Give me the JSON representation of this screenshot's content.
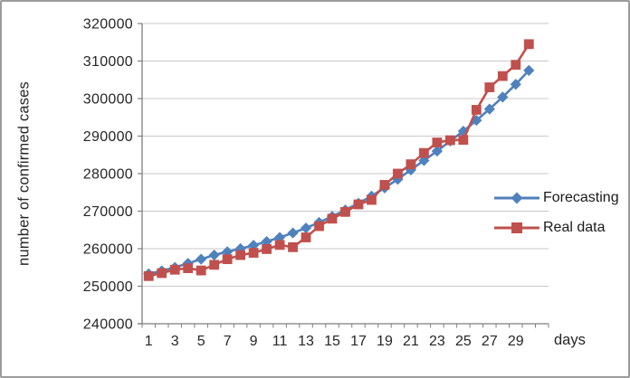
{
  "chart_data": {
    "type": "line",
    "title": "",
    "xlabel": "days",
    "ylabel": "number of confirmed cases",
    "x": [
      1,
      2,
      3,
      4,
      5,
      6,
      7,
      8,
      9,
      10,
      11,
      12,
      13,
      14,
      15,
      16,
      17,
      18,
      19,
      20,
      21,
      22,
      23,
      24,
      25,
      26,
      27,
      28,
      29,
      30
    ],
    "x_tick_labels": [
      1,
      3,
      5,
      7,
      9,
      11,
      13,
      15,
      17,
      19,
      21,
      23,
      25,
      27,
      29
    ],
    "y_ticks": [
      240000,
      250000,
      260000,
      270000,
      280000,
      290000,
      300000,
      310000,
      320000
    ],
    "ylim": [
      240000,
      320000
    ],
    "grid": true,
    "legend_position": "right",
    "series": [
      {
        "name": "Forecasting",
        "color": "#4F81BD",
        "marker": "diamond",
        "values": [
          253300,
          254100,
          255000,
          256100,
          257200,
          258300,
          259200,
          260000,
          260900,
          261900,
          263000,
          264200,
          265500,
          267000,
          268600,
          270300,
          272100,
          274000,
          276200,
          278500,
          281000,
          283500,
          286000,
          288700,
          291300,
          294200,
          297200,
          300400,
          303800,
          307500
        ]
      },
      {
        "name": "Real data",
        "color": "#C0504D",
        "marker": "square",
        "values": [
          252700,
          253500,
          254400,
          254800,
          254200,
          255700,
          257200,
          258300,
          258900,
          259900,
          261000,
          260400,
          263000,
          266000,
          268000,
          269800,
          271800,
          273000,
          277000,
          280000,
          282500,
          285500,
          288300,
          288900,
          289000,
          297000,
          303000,
          306000,
          309000,
          314500
        ]
      }
    ],
    "colors": {
      "gridline": "#c9c9c9",
      "axis": "#7f7f7f",
      "tick_text": "#262626"
    }
  }
}
